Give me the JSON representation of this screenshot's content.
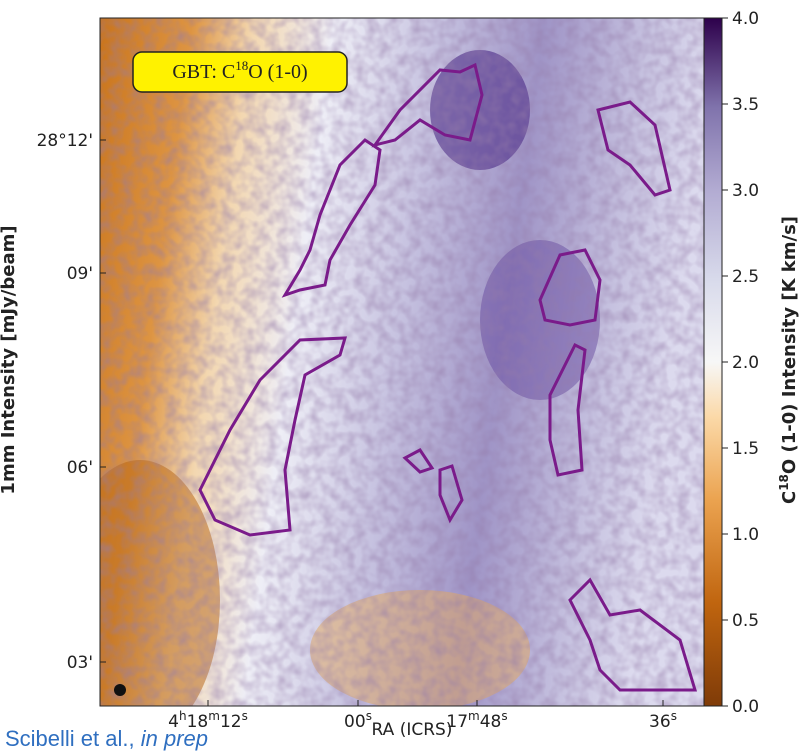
{
  "chart_data": {
    "type": "image",
    "label_box": [
      "GBT: C",
      "18",
      "O (1-0)"
    ],
    "y_label": "1mm Intensity [mJy/beam]",
    "y_tick_labels": [
      "28°12'",
      "09'",
      "06'",
      "03'"
    ],
    "x_label": "RA (ICRS)",
    "x_tick_labels": [
      [
        "4",
        "h",
        "18",
        "m",
        "12",
        "s"
      ],
      [
        "00",
        "s"
      ],
      [
        "17",
        "m",
        "48",
        "s"
      ],
      [
        "36",
        "s"
      ]
    ],
    "colorbar": {
      "label": [
        "C",
        "18",
        "O (1-0) Intensity [K km/s]"
      ],
      "lim": [
        0,
        4
      ],
      "ticks": [
        {
          "value": 0,
          "label": "0.0"
        },
        {
          "value": 0.5,
          "label": "0.5"
        },
        {
          "value": 1,
          "label": "1.0"
        },
        {
          "value": 1.5,
          "label": "1.5"
        },
        {
          "value": 2,
          "label": "2.0"
        },
        {
          "value": 2.5,
          "label": "2.5"
        },
        {
          "value": 3,
          "label": "3.0"
        },
        {
          "value": 3.5,
          "label": "3.5"
        },
        {
          "value": 4,
          "label": "4.0"
        }
      ]
    },
    "credit": [
      "Scibelli et al., ",
      "in prep"
    ]
  }
}
